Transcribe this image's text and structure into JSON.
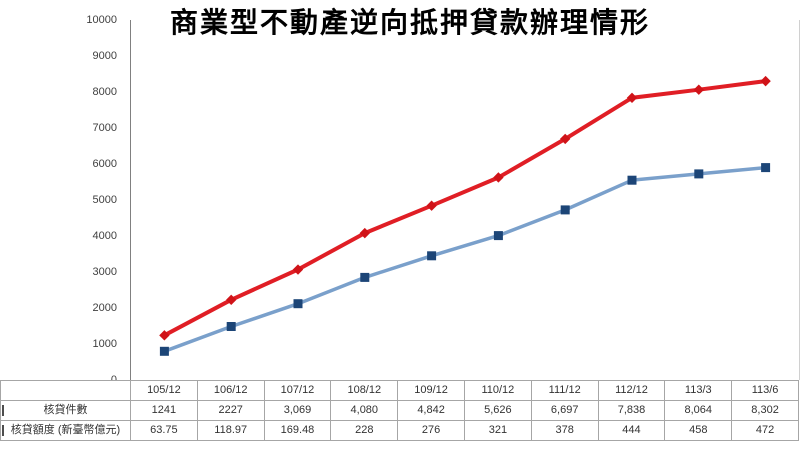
{
  "chart_data": {
    "type": "line",
    "title": "商業型不動產逆向抵押貸款辦理情形",
    "categories": [
      "105/12",
      "106/12",
      "107/12",
      "108/12",
      "109/12",
      "110/12",
      "111/12",
      "112/12",
      "113/3",
      "113/6"
    ],
    "series": [
      {
        "key": "loan-count",
        "name": "核貸件數",
        "axis": "primary",
        "marker": "diamond",
        "line_color": "#e01e25",
        "marker_color": "#d01318",
        "line_width": 4,
        "values": [
          1241,
          2227,
          3069,
          4080,
          4842,
          5626,
          6697,
          7838,
          8064,
          8302
        ],
        "labels": [
          "1241",
          "2227",
          "3,069",
          "4,080",
          "4,842",
          "5,626",
          "6,697",
          "7,838",
          "8,064",
          "8,302"
        ]
      },
      {
        "key": "loan-amount",
        "name": "核貸額度 (新臺幣億元)",
        "axis": "secondary",
        "marker": "square",
        "line_color": "#7aa0cb",
        "marker_color": "#1c4577",
        "line_width": 3.5,
        "values": [
          63.75,
          118.97,
          169.48,
          228,
          276,
          321,
          378,
          444,
          458,
          472
        ],
        "labels": [
          "63.75",
          "118.97",
          "169.48",
          "228",
          "276",
          "321",
          "378",
          "444",
          "458",
          "472"
        ]
      }
    ],
    "primary_ylim": [
      0,
      10000
    ],
    "secondary_ylim": [
      0,
      800
    ],
    "secondary_axis_visible": false,
    "yticks": [
      0,
      1000,
      2000,
      3000,
      4000,
      5000,
      6000,
      7000,
      8000,
      9000,
      10000
    ],
    "grid": false,
    "legend_position": "data-table-keys",
    "xlabel": "",
    "ylabel": "",
    "colors": {
      "axis": "#808080",
      "table_border": "#a6a6a6",
      "text": "#333333",
      "background": "#ffffff"
    }
  }
}
